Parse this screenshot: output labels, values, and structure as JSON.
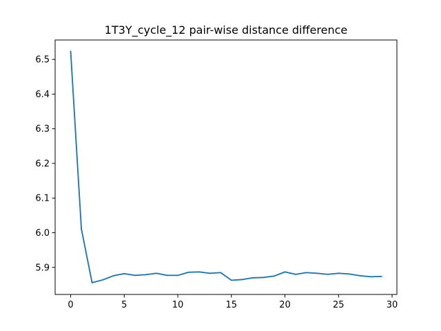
{
  "chart_data": {
    "type": "line",
    "title": "1T3Y_cycle_12 pair-wise distance difference",
    "xlabel": "",
    "ylabel": "",
    "xlim": [
      -1.45,
      30.45
    ],
    "ylim": [
      5.822,
      6.556
    ],
    "xticks": [
      0,
      5,
      10,
      15,
      20,
      25,
      30
    ],
    "yticks": [
      5.9,
      6.0,
      6.1,
      6.2,
      6.3,
      6.4,
      6.5
    ],
    "ytick_labels": [
      "5.9",
      "6.0",
      "6.1",
      "6.2",
      "6.3",
      "6.4",
      "6.5"
    ],
    "grid": false,
    "series": [
      {
        "color": "#1f77b4",
        "x": [
          0,
          1,
          2,
          3,
          4,
          5,
          6,
          7,
          8,
          9,
          10,
          11,
          12,
          13,
          14,
          15,
          16,
          17,
          18,
          19,
          20,
          21,
          22,
          23,
          24,
          25,
          26,
          27,
          28,
          29
        ],
        "values": [
          6.523,
          6.011,
          5.856,
          5.864,
          5.876,
          5.882,
          5.877,
          5.879,
          5.883,
          5.877,
          5.877,
          5.886,
          5.887,
          5.883,
          5.885,
          5.863,
          5.865,
          5.87,
          5.871,
          5.875,
          5.887,
          5.88,
          5.885,
          5.883,
          5.88,
          5.883,
          5.881,
          5.876,
          5.873,
          5.874
        ]
      }
    ]
  }
}
